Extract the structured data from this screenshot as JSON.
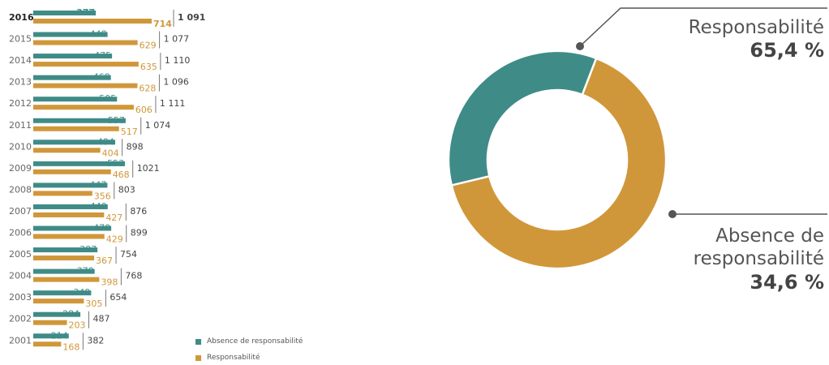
{
  "colors": {
    "absence": "#3f8b87",
    "responsabilite": "#d0973a",
    "total_text": "#444444",
    "year_text": "#666666"
  },
  "chart_data": [
    {
      "type": "bar",
      "orientation": "horizontal",
      "categories": [
        "2016",
        "2015",
        "2014",
        "2013",
        "2012",
        "2011",
        "2010",
        "2009",
        "2008",
        "2007",
        "2006",
        "2005",
        "2004",
        "2003",
        "2002",
        "2001"
      ],
      "series": [
        {
          "name": "Absence de responsabilité",
          "values": [
            377,
            448,
            475,
            468,
            505,
            557,
            494,
            553,
            447,
            449,
            470,
            387,
            370,
            349,
            284,
            214
          ]
        },
        {
          "name": "Responsabilité",
          "values": [
            714,
            629,
            635,
            628,
            606,
            517,
            404,
            468,
            356,
            427,
            429,
            367,
            398,
            305,
            203,
            168
          ]
        }
      ],
      "totals": [
        "1 091",
        "1 077",
        "1 110",
        "1 096",
        "1 111",
        "1 074",
        "898",
        "1021",
        "803",
        "876",
        "899",
        "754",
        "768",
        "654",
        "487",
        "382"
      ],
      "legend": [
        "Absence de responsabilité",
        "Responsabilité"
      ],
      "legend_position": "bottom-right",
      "grid": false
    },
    {
      "type": "pie",
      "donut": true,
      "slices": [
        {
          "label": "Responsabilité",
          "value": 65.4,
          "percent_label": "65,4 %"
        },
        {
          "label_lines": [
            "Absence de",
            "responsabilité"
          ],
          "value": 34.6,
          "percent_label": "34,6 %"
        }
      ]
    }
  ]
}
